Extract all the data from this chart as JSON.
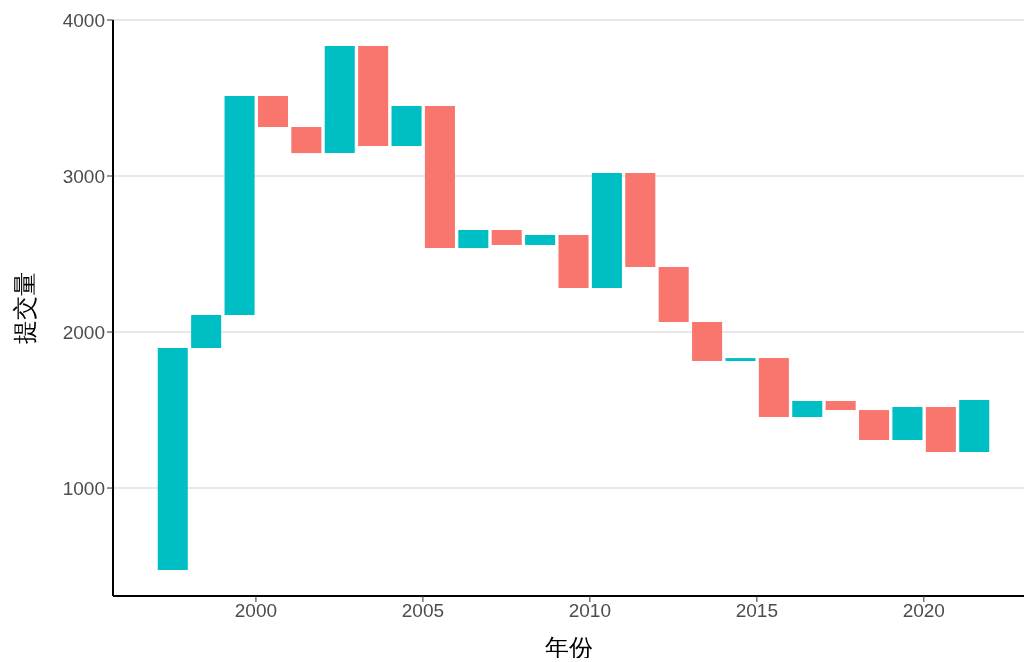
{
  "chart_data": {
    "type": "bar",
    "xlabel": "年份",
    "ylabel": "提交量",
    "x": [
      1997.5,
      1998.5,
      1999.5,
      2000.5,
      2001.5,
      2002.5,
      2003.5,
      2004.5,
      2005.5,
      2006.5,
      2007.5,
      2008.5,
      2009.5,
      2010.5,
      2011.5,
      2012.5,
      2013.5,
      2014.5,
      2015.5,
      2016.5,
      2017.5,
      2018.5,
      2019.5,
      2020.5,
      2021.5
    ],
    "base": [
      474,
      1897,
      2109,
      3513,
      3314,
      3147,
      3833,
      3192,
      3449,
      2538,
      2654,
      2558,
      2622,
      2282,
      3019,
      2417,
      2064,
      1814,
      1833,
      1455,
      1558,
      1500,
      1308,
      1519,
      1231
    ],
    "values": [
      1423,
      212,
      1404,
      -199,
      -167,
      686,
      -641,
      257,
      -911,
      116,
      -96,
      64,
      -340,
      737,
      -602,
      -353,
      -250,
      19,
      -378,
      103,
      -58,
      -192,
      211,
      -288,
      333
    ],
    "colors": [
      "#00bfc4",
      "#00bfc4",
      "#00bfc4",
      "#f8766d",
      "#f8766d",
      "#00bfc4",
      "#f8766d",
      "#00bfc4",
      "#f8766d",
      "#00bfc4",
      "#f8766d",
      "#00bfc4",
      "#f8766d",
      "#00bfc4",
      "#f8766d",
      "#f8766d",
      "#f8766d",
      "#00bfc4",
      "#f8766d",
      "#00bfc4",
      "#f8766d",
      "#f8766d",
      "#00bfc4",
      "#f8766d",
      "#00bfc4"
    ],
    "xlim": [
      1995.72,
      2023.0
    ],
    "xticks": [
      2000,
      2005,
      2010,
      2015,
      2020
    ],
    "ylim": [
      308,
      4000
    ],
    "yticks": [
      1000,
      2000,
      3000,
      4000
    ],
    "grid": "y",
    "legend": false
  }
}
